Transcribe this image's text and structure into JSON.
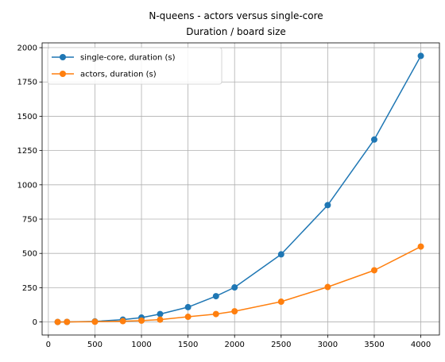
{
  "chart_data": {
    "type": "line",
    "title": "N-queens - actors versus single-core",
    "subtitle": "Duration / board size",
    "xlabel": "",
    "ylabel": "",
    "xlim": [
      -67,
      4200
    ],
    "ylim": [
      -95,
      2035
    ],
    "xticks": [
      0,
      500,
      1000,
      1500,
      2000,
      2500,
      3000,
      3500,
      4000
    ],
    "yticks": [
      0,
      250,
      500,
      750,
      1000,
      1250,
      1500,
      1750,
      2000
    ],
    "grid": true,
    "legend_position": "top-left",
    "x": [
      100,
      200,
      500,
      800,
      1000,
      1200,
      1500,
      1800,
      2000,
      2500,
      3000,
      3500,
      4000
    ],
    "series": [
      {
        "name": "single-core, duration (s)",
        "color": "#1f77b4",
        "values": [
          0.1,
          0.5,
          4,
          17,
          32,
          58,
          108,
          188,
          252,
          493,
          852,
          1330,
          1940
        ]
      },
      {
        "name": "actors, duration (s)",
        "color": "#ff7f0e",
        "values": [
          0.1,
          0.3,
          2,
          6,
          10,
          17,
          38,
          58,
          78,
          148,
          255,
          377,
          550
        ]
      }
    ]
  }
}
